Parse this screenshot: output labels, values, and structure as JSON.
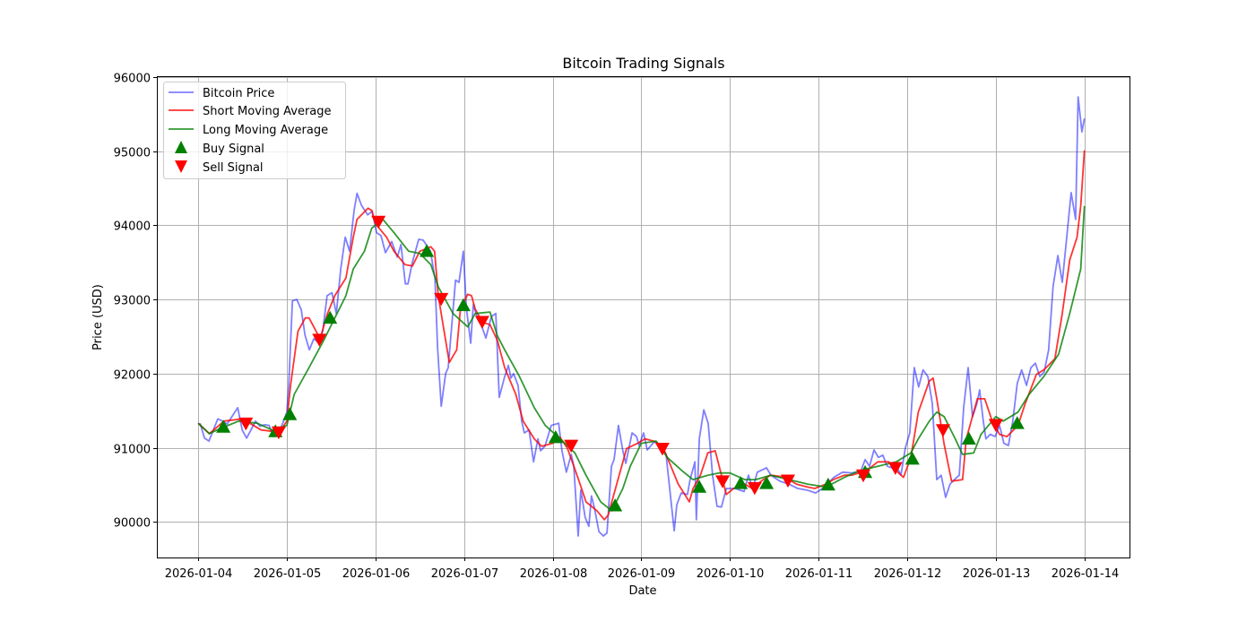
{
  "chart_data": {
    "type": "line",
    "title": "Bitcoin Trading Signals",
    "xlabel": "Date",
    "ylabel": "Price (USD)",
    "x_units": "hours since 2026-01-04 00:00",
    "xlim": [
      -11.2,
      252.2
    ],
    "ylim": [
      89520,
      96010
    ],
    "grid": true,
    "legend_position": "upper-left",
    "x_ticks": [
      {
        "value": 0,
        "label": "2026-01-04"
      },
      {
        "value": 24,
        "label": "2026-01-05"
      },
      {
        "value": 48,
        "label": "2026-01-06"
      },
      {
        "value": 72,
        "label": "2026-01-07"
      },
      {
        "value": 96,
        "label": "2026-01-08"
      },
      {
        "value": 120,
        "label": "2026-01-09"
      },
      {
        "value": 144,
        "label": "2026-01-10"
      },
      {
        "value": 168,
        "label": "2026-01-11"
      },
      {
        "value": 192,
        "label": "2026-01-12"
      },
      {
        "value": 216,
        "label": "2026-01-13"
      },
      {
        "value": 240,
        "label": "2026-01-14"
      }
    ],
    "y_ticks": [
      {
        "value": 90000,
        "label": "90000"
      },
      {
        "value": 91000,
        "label": "91000"
      },
      {
        "value": 92000,
        "label": "92000"
      },
      {
        "value": 93000,
        "label": "93000"
      },
      {
        "value": 94000,
        "label": "94000"
      },
      {
        "value": 95000,
        "label": "95000"
      },
      {
        "value": 96000,
        "label": "96000"
      }
    ],
    "series": [
      {
        "name": "Bitcoin Price",
        "color": "#0000ff",
        "opacity": 0.5,
        "x": [
          0.5,
          1.7,
          2.9,
          4.1,
          5.3,
          6.6,
          7.8,
          9.0,
          10.7,
          11.9,
          13.1,
          14.3,
          15.5,
          16.7,
          18.0,
          19.2,
          20.4,
          21.6,
          22.8,
          24.0,
          24.5,
          25.5,
          26.7,
          27.9,
          28.9,
          30.1,
          31.3,
          32.5,
          33.7,
          34.9,
          36.2,
          37.4,
          38.6,
          39.8,
          41.0,
          42.2,
          43.0,
          44.2,
          45.9,
          47.1,
          48.3,
          49.5,
          50.7,
          52.4,
          53.9,
          54.9,
          56.1,
          56.8,
          58.0,
          59.7,
          60.9,
          62.9,
          64.1,
          64.8,
          65.8,
          67.0,
          67.7,
          69.7,
          70.6,
          71.8,
          72.6,
          73.8,
          74.5,
          75.5,
          76.7,
          77.9,
          79.4,
          80.6,
          81.5,
          83.0,
          84.0,
          84.7,
          85.4,
          86.6,
          87.6,
          88.3,
          89.6,
          90.8,
          92.0,
          92.7,
          93.9,
          95.6,
          97.6,
          98.5,
          99.7,
          101.0,
          101.7,
          102.9,
          103.6,
          104.8,
          105.8,
          106.5,
          107.3,
          108.5,
          109.7,
          110.7,
          111.9,
          112.6,
          113.8,
          115.0,
          115.8,
          117.5,
          118.7,
          119.4,
          120.6,
          121.6,
          123.5,
          125.2,
          126.7,
          128.9,
          129.6,
          130.8,
          132.5,
          133.2,
          134.5,
          134.9,
          135.7,
          136.9,
          138.1,
          139.3,
          140.5,
          141.7,
          143.0,
          145.4,
          147.8,
          149.0,
          150.2,
          151.4,
          153.9,
          155.1,
          157.5,
          159.9,
          162.4,
          164.8,
          167.2,
          169.6,
          172.1,
          174.5,
          176.9,
          179.4,
          180.6,
          181.8,
          183.0,
          184.2,
          185.4,
          186.6,
          187.8,
          189.1,
          190.3,
          191.5,
          192.7,
          193.9,
          195.1,
          196.3,
          197.6,
          198.8,
          200.0,
          201.2,
          202.4,
          203.6,
          204.8,
          206.1,
          207.3,
          208.5,
          209.7,
          210.9,
          211.6,
          212.6,
          213.3,
          214.5,
          215.8,
          217.0,
          218.2,
          219.4,
          220.6,
          221.8,
          223.0,
          224.3,
          225.5,
          226.7,
          227.9,
          229.1,
          230.3,
          231.5,
          232.8,
          234.0,
          235.2,
          236.4,
          237.6,
          238.3,
          239.3,
          240.0
        ],
        "values": [
          91330,
          91130,
          91090,
          91240,
          91390,
          91360,
          91320,
          91410,
          91540,
          91240,
          91130,
          91240,
          91360,
          91290,
          91310,
          91300,
          91150,
          91190,
          91320,
          91480,
          91840,
          92980,
          93000,
          92860,
          92520,
          92320,
          92470,
          92420,
          92570,
          93050,
          93090,
          92810,
          93410,
          93840,
          93650,
          94200,
          94430,
          94270,
          94140,
          94190,
          93900,
          93860,
          93630,
          93780,
          93570,
          93740,
          93210,
          93210,
          93500,
          93810,
          93800,
          93650,
          93290,
          92360,
          91560,
          92000,
          92080,
          93260,
          93230,
          93650,
          92890,
          92410,
          92930,
          92770,
          92650,
          92480,
          92770,
          92810,
          91680,
          91960,
          92110,
          91940,
          92000,
          91840,
          91360,
          91200,
          91240,
          90810,
          91120,
          90960,
          91020,
          91300,
          91330,
          90960,
          90670,
          90910,
          90750,
          89810,
          90430,
          90060,
          89940,
          90350,
          90190,
          89870,
          89810,
          89850,
          90750,
          90840,
          91300,
          90960,
          90790,
          91200,
          91150,
          91030,
          91200,
          90970,
          91080,
          91030,
          90910,
          89880,
          90230,
          90390,
          90370,
          90570,
          90810,
          90030,
          91120,
          91510,
          91330,
          90630,
          90210,
          90200,
          90450,
          90450,
          90410,
          90630,
          90450,
          90670,
          90730,
          90630,
          90550,
          90510,
          90450,
          90430,
          90390,
          90470,
          90600,
          90670,
          90660,
          90680,
          90840,
          90750,
          90970,
          90870,
          90900,
          90750,
          90730,
          90750,
          90630,
          91000,
          91200,
          92080,
          91820,
          92050,
          91960,
          91600,
          90570,
          90630,
          90330,
          90510,
          90570,
          90630,
          91540,
          92080,
          91420,
          91600,
          91780,
          91360,
          91120,
          91180,
          91150,
          91300,
          91060,
          91030,
          91360,
          91870,
          92050,
          91840,
          92080,
          92140,
          91960,
          92020,
          92320,
          93170,
          93590,
          93230,
          93840,
          94440,
          94080,
          95730,
          95260,
          95440
        ]
      },
      {
        "name": "Short Moving Average",
        "color": "#ff0000",
        "opacity": 0.8,
        "x": [
          0,
          3,
          7,
          12,
          17,
          22,
          24,
          25,
          27,
          29,
          30,
          33,
          35,
          37,
          40,
          42,
          43,
          46,
          47,
          48,
          51,
          53,
          56,
          58,
          60,
          63,
          64,
          65,
          67,
          68,
          70,
          71,
          73,
          74,
          75,
          77,
          79,
          81,
          83,
          86,
          88,
          91,
          93,
          96,
          98,
          100,
          103,
          105,
          108,
          110,
          111,
          114,
          116,
          119,
          121,
          124,
          126,
          128,
          130,
          133,
          134,
          136,
          138,
          140,
          142,
          143,
          145,
          148,
          150,
          153,
          155,
          158,
          160,
          162,
          165,
          167,
          170,
          172,
          175,
          177,
          179,
          182,
          184,
          187,
          189,
          191,
          193,
          195,
          198,
          199,
          200,
          202,
          204,
          207,
          208,
          211,
          213,
          215,
          217,
          219,
          222,
          224,
          227,
          229,
          232,
          234,
          236,
          238,
          239,
          240
        ],
        "values": [
          91330,
          91190,
          91360,
          91390,
          91240,
          91210,
          91360,
          91840,
          92570,
          92750,
          92750,
          92470,
          92810,
          93050,
          93290,
          93840,
          94080,
          94230,
          94200,
          94020,
          93840,
          93650,
          93470,
          93450,
          93650,
          93710,
          93650,
          93050,
          92450,
          92150,
          92320,
          92870,
          93070,
          93050,
          92870,
          92690,
          92660,
          92450,
          92080,
          91720,
          91360,
          91120,
          91020,
          91060,
          91140,
          90990,
          90570,
          90270,
          90150,
          90030,
          90090,
          90630,
          90990,
          91060,
          91120,
          91080,
          90990,
          90750,
          90510,
          90270,
          90450,
          90630,
          90930,
          90960,
          90570,
          90370,
          90450,
          90510,
          90450,
          90570,
          90630,
          90610,
          90570,
          90510,
          90470,
          90450,
          90510,
          90570,
          90630,
          90630,
          90660,
          90730,
          90810,
          90810,
          90690,
          90600,
          90870,
          91480,
          91900,
          91940,
          91660,
          91050,
          90550,
          90570,
          91120,
          91660,
          91660,
          91360,
          91180,
          91150,
          91300,
          91600,
          91990,
          92050,
          92200,
          92810,
          93530,
          93840,
          94260,
          95010
        ]
      },
      {
        "name": "Long Moving Average",
        "color": "#008000",
        "opacity": 0.8,
        "x": [
          0,
          3,
          6,
          11,
          16,
          20,
          24,
          26,
          30,
          34,
          37,
          40,
          42,
          45,
          47,
          50,
          53,
          57,
          60,
          63,
          65,
          69,
          73,
          75,
          79,
          81,
          83,
          87,
          91,
          94,
          98,
          102,
          105,
          109,
          112,
          115,
          117,
          120,
          124,
          127,
          131,
          134,
          138,
          141,
          144,
          148,
          151,
          155,
          160,
          165,
          170,
          175,
          179,
          184,
          189,
          193,
          195,
          198,
          200,
          202,
          205,
          207,
          210,
          212,
          216,
          218,
          222,
          225,
          229,
          233,
          236,
          239,
          240
        ],
        "values": [
          91330,
          91190,
          91260,
          91360,
          91330,
          91240,
          91300,
          91720,
          92080,
          92450,
          92750,
          93050,
          93410,
          93650,
          93960,
          94080,
          93900,
          93650,
          93620,
          93470,
          93170,
          92810,
          92630,
          92810,
          92830,
          92510,
          92320,
          91960,
          91540,
          91300,
          91120,
          90930,
          90630,
          90270,
          90150,
          90450,
          90750,
          91060,
          91090,
          90870,
          90690,
          90570,
          90630,
          90660,
          90660,
          90570,
          90570,
          90630,
          90570,
          90510,
          90470,
          90600,
          90690,
          90750,
          90810,
          90930,
          91120,
          91360,
          91480,
          91420,
          91120,
          90910,
          90930,
          91180,
          91420,
          91360,
          91480,
          91720,
          91960,
          92260,
          92810,
          93410,
          94260
        ]
      }
    ],
    "markers": [
      {
        "name": "Buy Signal",
        "shape": "triangle-up",
        "color": "#008000",
        "x": [
          6.8,
          20.9,
          24.8,
          35.7,
          61.9,
          71.8,
          96.8,
          112.9,
          135.7,
          146.9,
          153.9,
          170.6,
          180.6,
          193.4,
          208.7,
          221.8
        ],
        "values": [
          91280,
          91220,
          91450,
          92750,
          93650,
          92920,
          91140,
          90220,
          90470,
          90520,
          90520,
          90500,
          90670,
          90850,
          91120,
          91330
        ]
      },
      {
        "name": "Sell Signal",
        "shape": "triangle-down",
        "color": "#ff0000",
        "x": [
          12.9,
          21.8,
          32.8,
          48.8,
          65.8,
          76.9,
          101.0,
          125.7,
          142.0,
          150.7,
          159.7,
          180.1,
          188.8,
          201.7,
          216.0
        ],
        "values": [
          91330,
          91210,
          92460,
          94050,
          93010,
          92700,
          91030,
          90990,
          90550,
          90460,
          90560,
          90630,
          90730,
          91240,
          91310
        ]
      }
    ],
    "legend": [
      "Bitcoin Price",
      "Short Moving Average",
      "Long Moving Average",
      "Buy Signal",
      "Sell Signal"
    ]
  }
}
